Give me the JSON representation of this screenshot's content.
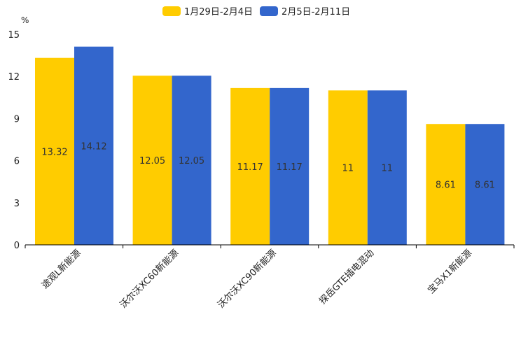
{
  "chart_data": {
    "type": "bar",
    "unit": "%",
    "categories": [
      "途观L新能源",
      "沃尔沃XC60新能源",
      "沃尔沃XC90新能源",
      "探岳GTE插电混动",
      "宝马X1新能源"
    ],
    "series": [
      {
        "name": "1月29日-2月4日",
        "color": "#FFCC00",
        "values": [
          13.32,
          12.05,
          11.17,
          11,
          8.61
        ],
        "labels": [
          "13.32",
          "12.05",
          "11.17",
          "11",
          "8.61"
        ]
      },
      {
        "name": "2月5日-2月11日",
        "color": "#3366CC",
        "values": [
          14.12,
          12.05,
          11.17,
          11,
          8.61
        ],
        "labels": [
          "14.12",
          "12.05",
          "11.17",
          "11",
          "8.61"
        ]
      }
    ],
    "yticks": [
      0,
      3,
      6,
      9,
      12,
      15
    ],
    "ylim": [
      0,
      15
    ],
    "legend_position": "top-center"
  }
}
